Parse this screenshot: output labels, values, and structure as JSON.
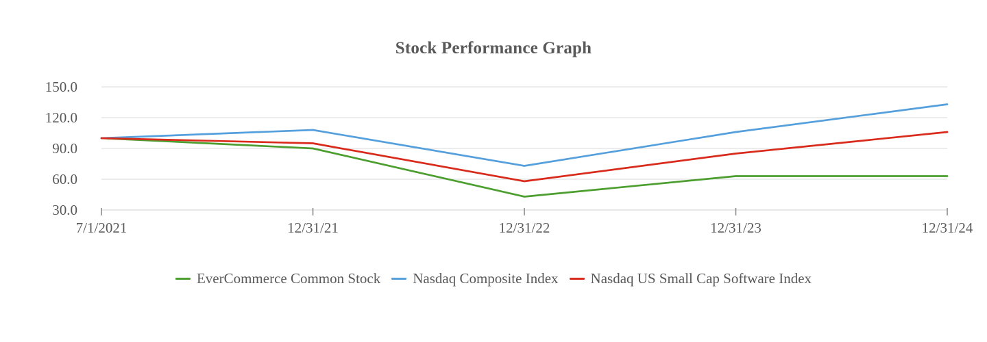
{
  "chart_data": {
    "type": "line",
    "title": "Stock Performance Graph",
    "categories": [
      "7/1/2021",
      "12/31/21",
      "12/31/22",
      "12/31/23",
      "12/31/24"
    ],
    "series": [
      {
        "name": "EverCommerce Common Stock",
        "color": "#4C9E2F",
        "values": [
          100,
          90,
          43,
          63,
          63
        ]
      },
      {
        "name": "Nasdaq Composite Index",
        "color": "#55A0DC",
        "values": [
          100,
          108,
          73,
          106,
          133
        ]
      },
      {
        "name": "Nasdaq US Small Cap Software Index",
        "color": "#D92B1C",
        "values": [
          100,
          95,
          58,
          85,
          106
        ]
      }
    ],
    "ytick_labels": [
      "30.0",
      "60.0",
      "90.0",
      "120.0",
      "150.0"
    ],
    "yticks": [
      30,
      60,
      90,
      120,
      150
    ],
    "ylim": [
      30,
      150
    ],
    "xlabel": "",
    "ylabel": "",
    "grid": true,
    "legend_position": "bottom",
    "colors": {
      "text": "#595959",
      "gridline": "#D9D9D9",
      "axis": "#D2D2D2",
      "tick": "#8C8C8C"
    }
  }
}
